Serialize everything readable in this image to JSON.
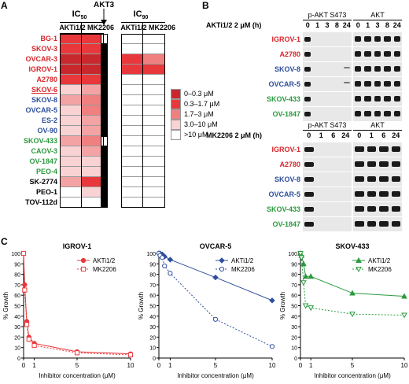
{
  "colors": {
    "red": "#d9262c",
    "blue": "#2e4f9c",
    "green": "#2a9a3e",
    "black": "#000000"
  },
  "panelA": {
    "label": "A",
    "ic50": {
      "base": "IC",
      "sub": "50"
    },
    "ic90": {
      "base": "IC",
      "sub": "90"
    },
    "akt3": "AKT3",
    "drug1": "AKTi1/2",
    "drug2": "MK2206",
    "rows": [
      {
        "name": "BG-1",
        "color": "red",
        "ic50": [
          1,
          1
        ],
        "akt3": 0,
        "ic90": [
          5,
          5
        ]
      },
      {
        "name": "SKOV-3",
        "color": "red",
        "ic50": [
          1,
          1
        ],
        "akt3": 1,
        "ic90": [
          5,
          5
        ]
      },
      {
        "name": "OVCAR-3",
        "color": "red",
        "ic50": [
          0,
          0
        ],
        "akt3": 1,
        "ic90": [
          1,
          2
        ]
      },
      {
        "name": "IGROV-1",
        "color": "red",
        "ic50": [
          0,
          0
        ],
        "akt3": 1,
        "ic90": [
          1,
          1
        ]
      },
      {
        "name": "A2780",
        "color": "red",
        "ic50": [
          1,
          1
        ],
        "akt3": 1,
        "ic90": [
          5,
          5
        ]
      },
      {
        "name": "SKOV-6",
        "color": "red",
        "ic50": [
          4,
          3
        ],
        "akt3": 1,
        "ic90": [
          5,
          5
        ],
        "underline": true
      },
      {
        "name": "SKOV-8",
        "color": "blue",
        "ic50": [
          3,
          2
        ],
        "akt3": 1,
        "ic90": [
          5,
          5
        ]
      },
      {
        "name": "OVCAR-5",
        "color": "blue",
        "ic50": [
          4,
          2
        ],
        "akt3": 1,
        "ic90": [
          5,
          5
        ]
      },
      {
        "name": "ES-2",
        "color": "blue",
        "ic50": [
          4,
          3
        ],
        "akt3": 1,
        "ic90": [
          5,
          5
        ]
      },
      {
        "name": "OV-90",
        "color": "blue",
        "ic50": [
          4,
          3
        ],
        "akt3": 1,
        "ic90": [
          5,
          5
        ]
      },
      {
        "name": "SKOV-433",
        "color": "green",
        "ic50": [
          3,
          2
        ],
        "akt3": 0,
        "ic90": [
          5,
          5
        ]
      },
      {
        "name": "CAOV-3",
        "color": "green",
        "ic50": [
          4,
          3
        ],
        "akt3": 1,
        "ic90": [
          5,
          5
        ]
      },
      {
        "name": "OV-1847",
        "color": "green",
        "ic50": [
          4,
          4
        ],
        "akt3": 1,
        "ic90": [
          5,
          5
        ]
      },
      {
        "name": "PEO-4",
        "color": "green",
        "ic50": [
          4,
          4
        ],
        "akt3": 1,
        "ic90": [
          5,
          5
        ]
      },
      {
        "name": "SK-2774",
        "color": "black",
        "ic50": [
          3,
          1
        ],
        "akt3": 1,
        "ic90": [
          5,
          5
        ]
      },
      {
        "name": "PEO-1",
        "color": "black",
        "ic50": [
          5,
          4
        ],
        "akt3": 1,
        "ic90": [
          5,
          5
        ]
      },
      {
        "name": "TOV-112d",
        "color": "black",
        "ic50": [
          5,
          5
        ],
        "akt3": 1,
        "ic90": [
          5,
          5
        ]
      }
    ],
    "legend": [
      {
        "label": "0–0.3 μM",
        "color": "#c8282d"
      },
      {
        "label": "0.3–1.7 μM",
        "color": "#e8383c"
      },
      {
        "label": "1.7–3 μM",
        "color": "#f07f80"
      },
      {
        "label": "3.0–10 μM",
        "color": "#f9d2d3"
      },
      {
        "label": ">10 μM",
        "color": "#ffffff"
      }
    ],
    "shades": [
      "#c8282d",
      "#e8383c",
      "#f07f80",
      "#f4a3a5",
      "#f9d2d3",
      "#ffffff"
    ]
  },
  "panelB": {
    "label": "B",
    "top": {
      "treatment": "AKTi1/2 2 μM (h)",
      "col1": "p-AKT S473",
      "col2": "AKT",
      "times": [
        "0",
        "1",
        "3",
        "8",
        "24"
      ],
      "rows": [
        {
          "name": "IGROV-1",
          "color": "red"
        },
        {
          "name": "A2780",
          "color": "red"
        },
        {
          "name": "SKOV-8",
          "color": "blue"
        },
        {
          "name": "OVCAR-5",
          "color": "blue"
        },
        {
          "name": "SKOV-433",
          "color": "green"
        },
        {
          "name": "OV-1847",
          "color": "green"
        }
      ]
    },
    "bottom": {
      "treatment": "MK2206 2 μM (h)",
      "col1": "p-AKT S473",
      "col2": "AKT",
      "times": [
        "0",
        "1",
        "6",
        "24"
      ],
      "rows": [
        {
          "name": "IGROV-1",
          "color": "red"
        },
        {
          "name": "A2780",
          "color": "red"
        },
        {
          "name": "SKOV-8",
          "color": "blue"
        },
        {
          "name": "OVCAR-5",
          "color": "blue"
        },
        {
          "name": "SKOV-433",
          "color": "green"
        },
        {
          "name": "OV-1847",
          "color": "green"
        }
      ]
    }
  },
  "panelC": {
    "label": "C"
  },
  "chart_data": [
    {
      "type": "line",
      "title": "IGROV-1",
      "xlabel": "Inhibitor concentration (μM)",
      "ylabel": "% Growth",
      "xlim": [
        0,
        10
      ],
      "ylim": [
        0,
        100
      ],
      "xticks": [
        "0",
        "1",
        "5",
        "10"
      ],
      "yticks": [
        "0",
        "10",
        "20",
        "30",
        "40",
        "50",
        "60",
        "70",
        "80",
        "90",
        "100"
      ],
      "color": "#e8383c",
      "series": [
        {
          "name": "AKTi1/2",
          "marker": "circle",
          "dash": false,
          "x": [
            0,
            0.1,
            0.3,
            0.5,
            1,
            5,
            10
          ],
          "y": [
            100,
            70,
            35,
            20,
            14,
            6,
            4
          ]
        },
        {
          "name": "MK2206",
          "marker": "square-open",
          "dash": true,
          "x": [
            0,
            0.1,
            0.3,
            0.5,
            1,
            5,
            10
          ],
          "y": [
            100,
            65,
            32,
            18,
            12,
            5,
            3
          ]
        }
      ]
    },
    {
      "type": "line",
      "title": "OVCAR-5",
      "xlabel": "Inhibitor concentration (μM)",
      "ylabel": "% Growth",
      "xlim": [
        0,
        10
      ],
      "ylim": [
        0,
        100
      ],
      "xticks": [
        "0",
        "1",
        "5",
        "10"
      ],
      "yticks": [
        "0",
        "10",
        "20",
        "30",
        "40",
        "50",
        "60",
        "70",
        "80",
        "90",
        "100"
      ],
      "color": "#2e4f9c",
      "series": [
        {
          "name": "AKTi1/2",
          "marker": "diamond",
          "dash": false,
          "x": [
            0,
            0.1,
            0.3,
            0.5,
            1,
            5,
            10
          ],
          "y": [
            100,
            100,
            99,
            97,
            94,
            77,
            55
          ]
        },
        {
          "name": "MK2206",
          "marker": "circle-open",
          "dash": true,
          "x": [
            0,
            0.1,
            0.3,
            0.5,
            1,
            5,
            10
          ],
          "y": [
            100,
            98,
            96,
            88,
            81,
            37,
            11
          ]
        }
      ]
    },
    {
      "type": "line",
      "title": "SKOV-433",
      "xlabel": "Inhibitor concentration (μM)",
      "ylabel": "% Growth",
      "xlim": [
        0,
        10
      ],
      "ylim": [
        0,
        100
      ],
      "xticks": [
        "0",
        "1",
        "5",
        "10"
      ],
      "yticks": [
        "0",
        "10",
        "20",
        "30",
        "40",
        "50",
        "60",
        "70",
        "80",
        "90",
        "100"
      ],
      "color": "#2a9a3e",
      "series": [
        {
          "name": "AKTi1/2",
          "marker": "triangle",
          "dash": false,
          "x": [
            0,
            0.1,
            0.3,
            0.5,
            1,
            5,
            10
          ],
          "y": [
            100,
            98,
            90,
            78,
            78,
            62,
            59
          ]
        },
        {
          "name": "MK2206",
          "marker": "triangle-down-open",
          "dash": true,
          "x": [
            0,
            0.1,
            0.3,
            0.5,
            1,
            5,
            10
          ],
          "y": [
            100,
            96,
            72,
            50,
            48,
            42,
            41
          ]
        }
      ]
    }
  ]
}
